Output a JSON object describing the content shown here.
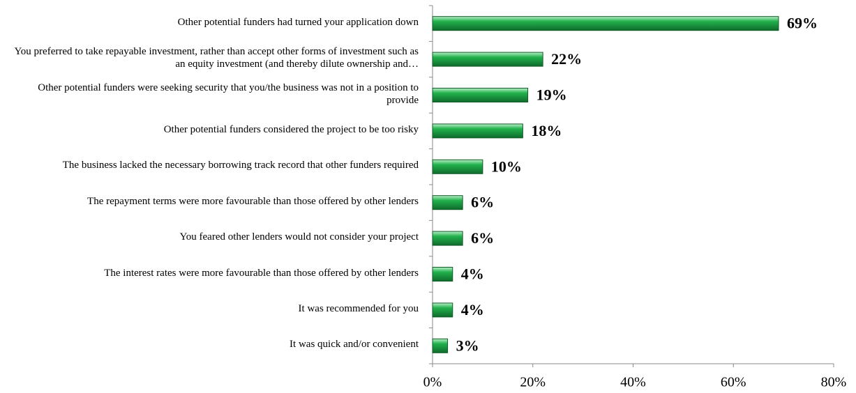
{
  "chart_data": {
    "type": "bar",
    "orientation": "horizontal",
    "categories": [
      "Other potential funders had turned your application down",
      "You preferred to take repayable investment, rather than accept other forms of investment such as an equity investment (and thereby dilute ownership and…",
      "Other potential funders were seeking security that you/the business was not in a position to provide",
      "Other potential funders considered the project to be too risky",
      "The business lacked the necessary borrowing track record that other funders required",
      "The repayment terms were more favourable than those offered by other lenders",
      "You feared other lenders would not consider your project",
      "The interest rates were more favourable than those offered by other lenders",
      "It was recommended for you",
      "It was quick and/or convenient"
    ],
    "values": [
      69,
      22,
      19,
      18,
      10,
      6,
      6,
      4,
      4,
      3
    ],
    "value_labels": [
      "69%",
      "22%",
      "19%",
      "18%",
      "10%",
      "6%",
      "6%",
      "4%",
      "4%",
      "3%"
    ],
    "color": "#22b14c",
    "xlim": [
      0,
      80
    ],
    "xticks": [
      {
        "value": 0,
        "label": "0%"
      },
      {
        "value": 20,
        "label": "20%"
      },
      {
        "value": 40,
        "label": "40%"
      },
      {
        "value": 60,
        "label": "60%"
      },
      {
        "value": 80,
        "label": "80%"
      }
    ]
  }
}
